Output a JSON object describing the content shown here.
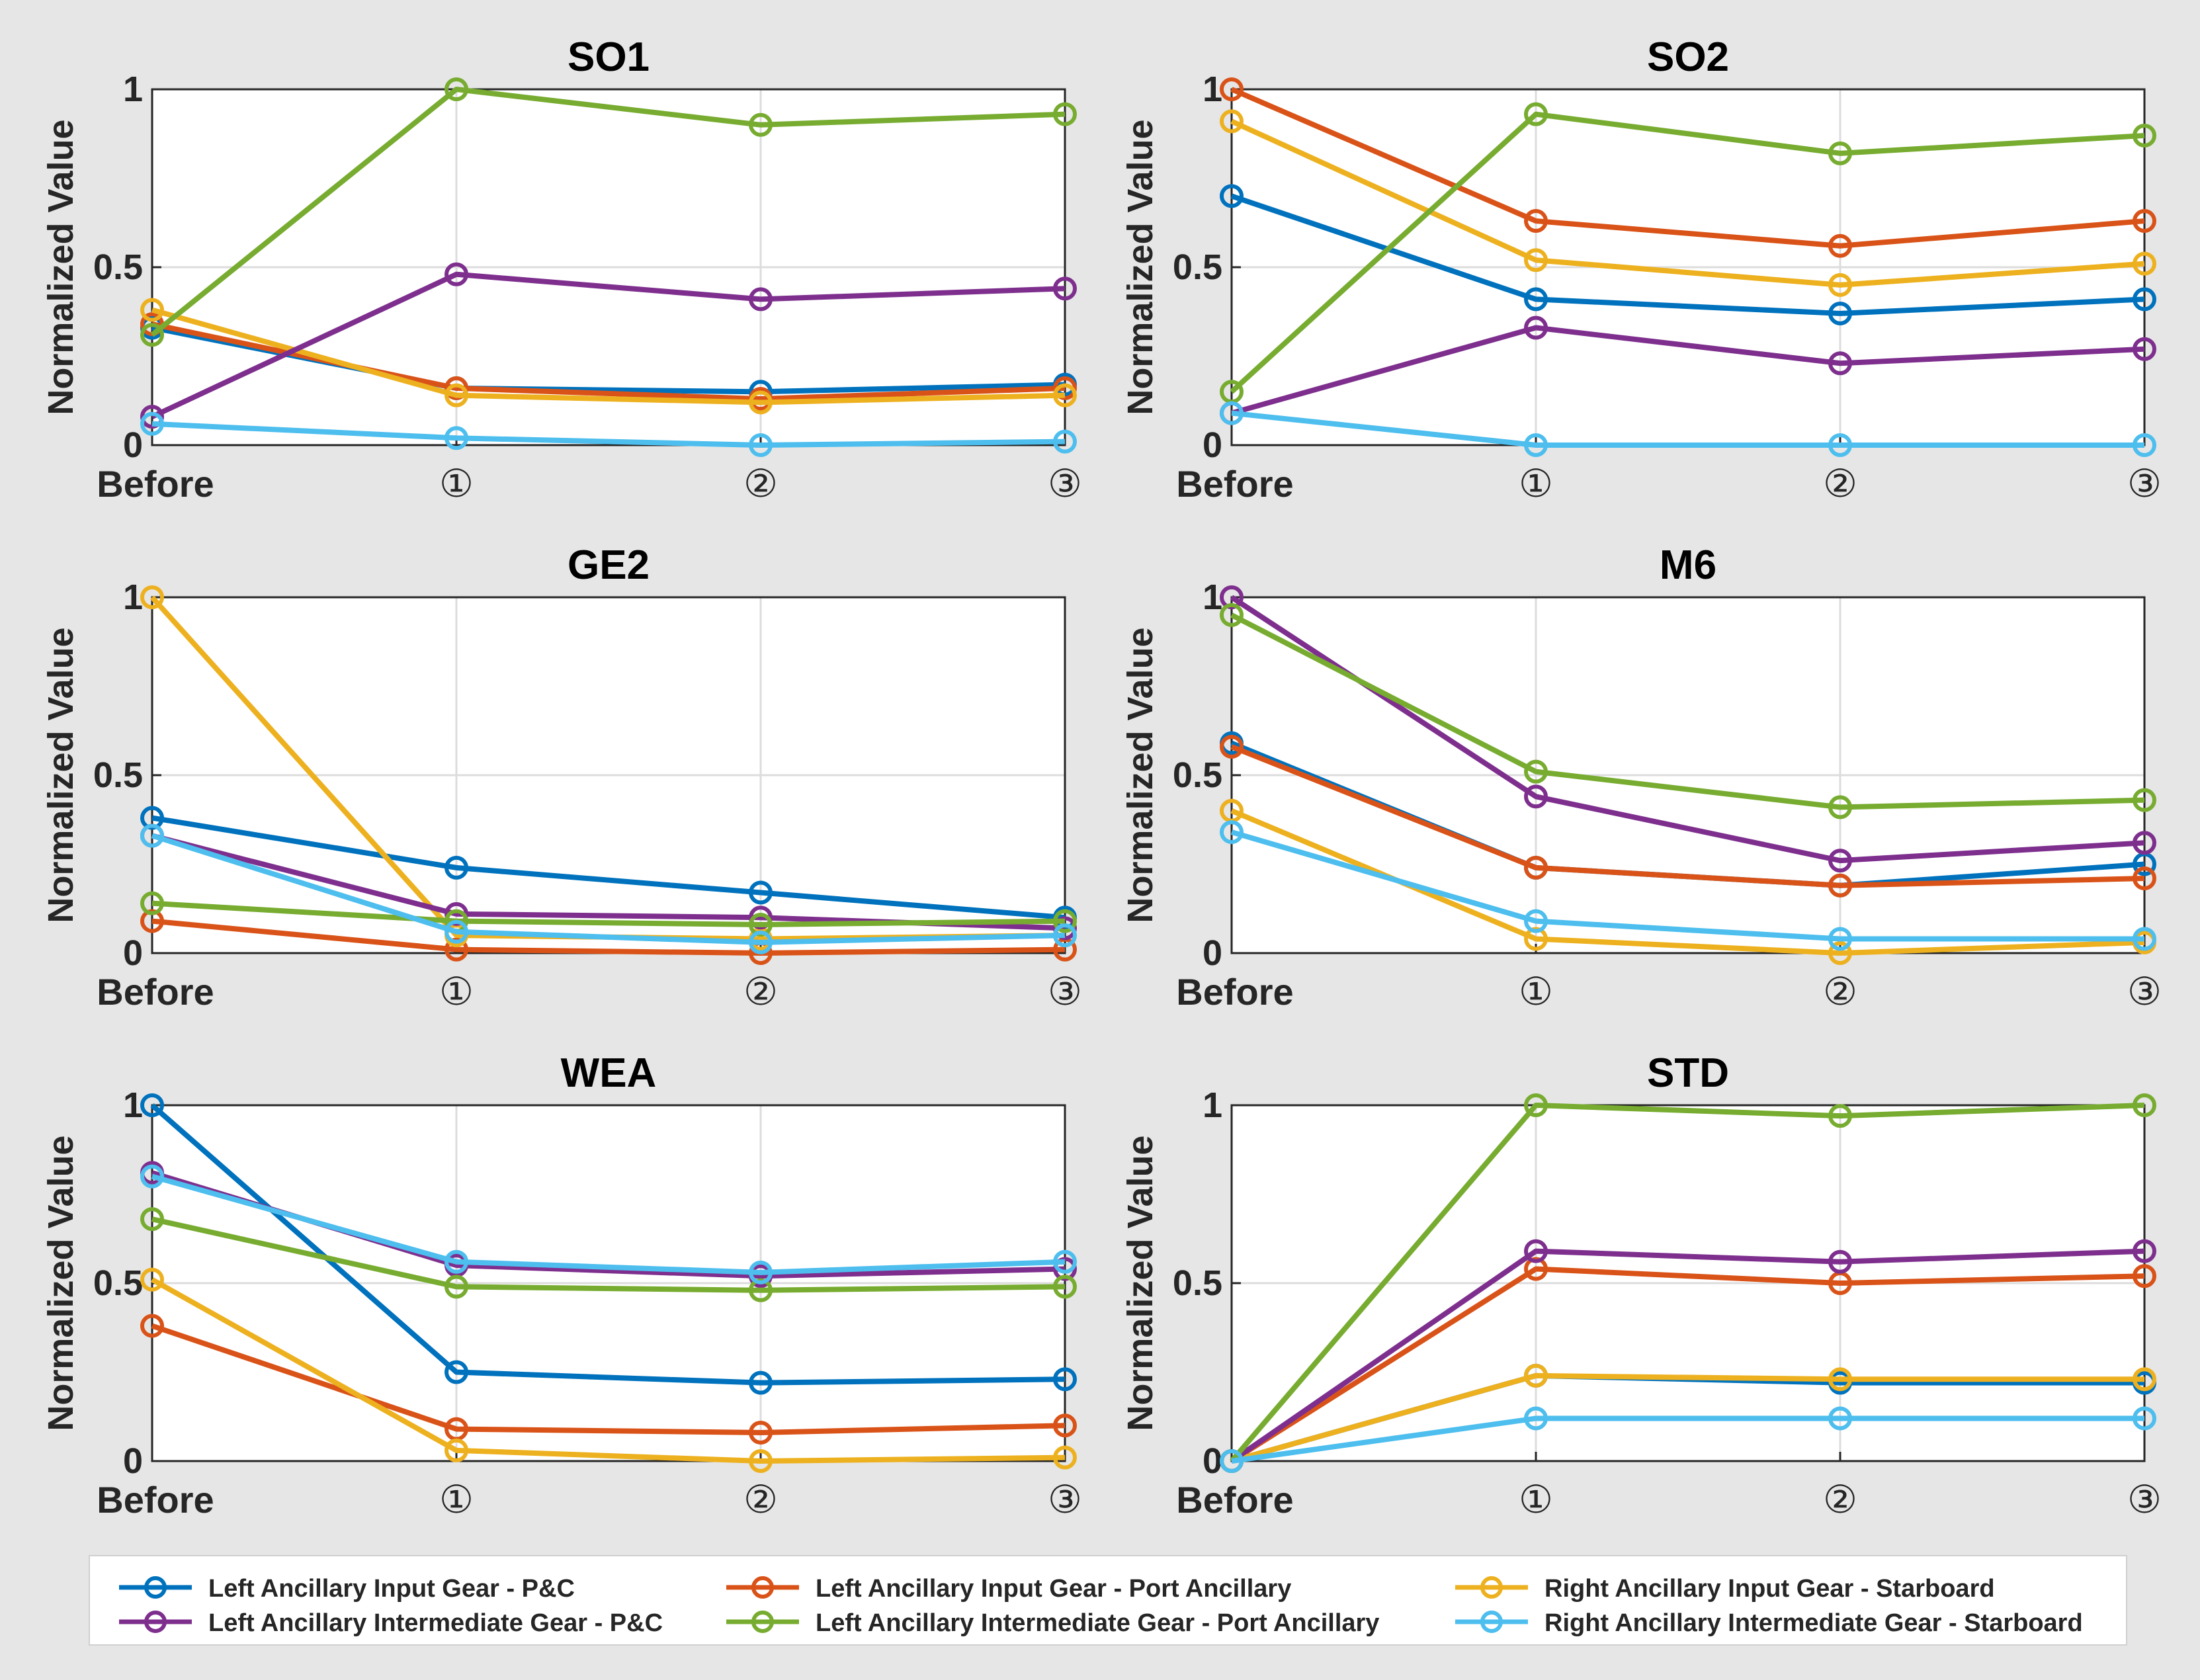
{
  "figure": {
    "ylabel": "Normalized Value",
    "categories": [
      "Before",
      "①",
      "②",
      "③"
    ],
    "ylim": [
      0,
      1
    ],
    "yticks": [
      0,
      0.5,
      1
    ],
    "ytick_labels": [
      "0",
      "0.5",
      "1"
    ]
  },
  "series_meta": [
    {
      "key": "lig_pc",
      "name": "Left Ancillary Input Gear - P&C",
      "color": "#0072BD"
    },
    {
      "key": "lig_port",
      "name": "Left Ancillary Input Gear - Port Ancillary",
      "color": "#D95319"
    },
    {
      "key": "rig_star",
      "name": "Right Ancillary Input Gear - Starboard",
      "color": "#EDB120"
    },
    {
      "key": "lii_pc",
      "name": "Left Ancillary Intermediate Gear - P&C",
      "color": "#7E2F8E"
    },
    {
      "key": "lii_port",
      "name": "Left Ancillary Intermediate Gear - Port Ancillary",
      "color": "#77AC30"
    },
    {
      "key": "rii_star",
      "name": "Right Ancillary Intermediate Gear - Starboard",
      "color": "#4DBEEE"
    }
  ],
  "chart_data": [
    {
      "type": "line",
      "title": "SO1",
      "categories": [
        "Before",
        "①",
        "②",
        "③"
      ],
      "ylabel": "Normalized Value",
      "ylim": [
        0,
        1
      ],
      "series": [
        {
          "name": "Left Ancillary Input Gear - P&C",
          "values": [
            0.33,
            0.16,
            0.15,
            0.17
          ]
        },
        {
          "name": "Left Ancillary Input Gear - Port Ancillary",
          "values": [
            0.34,
            0.16,
            0.13,
            0.16
          ]
        },
        {
          "name": "Right Ancillary Input Gear - Starboard",
          "values": [
            0.38,
            0.14,
            0.12,
            0.14
          ]
        },
        {
          "name": "Left Ancillary Intermediate Gear - P&C",
          "values": [
            0.08,
            0.48,
            0.41,
            0.44
          ]
        },
        {
          "name": "Left Ancillary Intermediate Gear - Port Ancillary",
          "values": [
            0.31,
            1.0,
            0.9,
            0.93
          ]
        },
        {
          "name": "Right Ancillary Intermediate Gear - Starboard",
          "values": [
            0.06,
            0.02,
            0.0,
            0.01
          ]
        }
      ]
    },
    {
      "type": "line",
      "title": "SO2",
      "categories": [
        "Before",
        "①",
        "②",
        "③"
      ],
      "ylabel": "Normalized Value",
      "ylim": [
        0,
        1
      ],
      "series": [
        {
          "name": "Left Ancillary Input Gear - P&C",
          "values": [
            0.7,
            0.41,
            0.37,
            0.41
          ]
        },
        {
          "name": "Left Ancillary Input Gear - Port Ancillary",
          "values": [
            1.0,
            0.63,
            0.56,
            0.63
          ]
        },
        {
          "name": "Right Ancillary Input Gear - Starboard",
          "values": [
            0.91,
            0.52,
            0.45,
            0.51
          ]
        },
        {
          "name": "Left Ancillary Intermediate Gear - P&C",
          "values": [
            0.09,
            0.33,
            0.23,
            0.27
          ]
        },
        {
          "name": "Left Ancillary Intermediate Gear - Port Ancillary",
          "values": [
            0.15,
            0.93,
            0.82,
            0.87
          ]
        },
        {
          "name": "Right Ancillary Intermediate Gear - Starboard",
          "values": [
            0.09,
            0.0,
            0.0,
            0.0
          ]
        }
      ]
    },
    {
      "type": "line",
      "title": "GE2",
      "categories": [
        "Before",
        "①",
        "②",
        "③"
      ],
      "ylabel": "Normalized Value",
      "ylim": [
        0,
        1
      ],
      "series": [
        {
          "name": "Left Ancillary Input Gear - P&C",
          "values": [
            0.38,
            0.24,
            0.17,
            0.1
          ]
        },
        {
          "name": "Left Ancillary Input Gear - Port Ancillary",
          "values": [
            0.09,
            0.01,
            0.0,
            0.01
          ]
        },
        {
          "name": "Right Ancillary Input Gear - Starboard",
          "values": [
            1.0,
            0.05,
            0.04,
            0.05
          ]
        },
        {
          "name": "Left Ancillary Intermediate Gear - P&C",
          "values": [
            0.33,
            0.11,
            0.1,
            0.07
          ]
        },
        {
          "name": "Left Ancillary Intermediate Gear - Port Ancillary",
          "values": [
            0.14,
            0.09,
            0.08,
            0.09
          ]
        },
        {
          "name": "Right Ancillary Intermediate Gear - Starboard",
          "values": [
            0.33,
            0.06,
            0.03,
            0.05
          ]
        }
      ]
    },
    {
      "type": "line",
      "title": "M6",
      "categories": [
        "Before",
        "①",
        "②",
        "③"
      ],
      "ylabel": "Normalized Value",
      "ylim": [
        0,
        1
      ],
      "series": [
        {
          "name": "Left Ancillary Input Gear - P&C",
          "values": [
            0.59,
            0.24,
            0.19,
            0.25
          ]
        },
        {
          "name": "Left Ancillary Input Gear - Port Ancillary",
          "values": [
            0.58,
            0.24,
            0.19,
            0.21
          ]
        },
        {
          "name": "Right Ancillary Input Gear - Starboard",
          "values": [
            0.4,
            0.04,
            0.0,
            0.03
          ]
        },
        {
          "name": "Left Ancillary Intermediate Gear - P&C",
          "values": [
            1.0,
            0.44,
            0.26,
            0.31
          ]
        },
        {
          "name": "Left Ancillary Intermediate Gear - Port Ancillary",
          "values": [
            0.95,
            0.51,
            0.41,
            0.43
          ]
        },
        {
          "name": "Right Ancillary Intermediate Gear - Starboard",
          "values": [
            0.34,
            0.09,
            0.04,
            0.04
          ]
        }
      ]
    },
    {
      "type": "line",
      "title": "WEA",
      "categories": [
        "Before",
        "①",
        "②",
        "③"
      ],
      "ylabel": "Normalized Value",
      "ylim": [
        0,
        1
      ],
      "series": [
        {
          "name": "Left Ancillary Input Gear - P&C",
          "values": [
            1.0,
            0.25,
            0.22,
            0.23
          ]
        },
        {
          "name": "Left Ancillary Input Gear - Port Ancillary",
          "values": [
            0.38,
            0.09,
            0.08,
            0.1
          ]
        },
        {
          "name": "Right Ancillary Input Gear - Starboard",
          "values": [
            0.51,
            0.03,
            0.0,
            0.01
          ]
        },
        {
          "name": "Left Ancillary Intermediate Gear - P&C",
          "values": [
            0.81,
            0.55,
            0.52,
            0.54
          ]
        },
        {
          "name": "Left Ancillary Intermediate Gear - Port Ancillary",
          "values": [
            0.68,
            0.49,
            0.48,
            0.49
          ]
        },
        {
          "name": "Right Ancillary Intermediate Gear - Starboard",
          "values": [
            0.8,
            0.56,
            0.53,
            0.56
          ]
        }
      ]
    },
    {
      "type": "line",
      "title": "STD",
      "categories": [
        "Before",
        "①",
        "②",
        "③"
      ],
      "ylabel": "Normalized Value",
      "ylim": [
        0,
        1
      ],
      "series": [
        {
          "name": "Left Ancillary Input Gear - P&C",
          "values": [
            0.0,
            0.24,
            0.22,
            0.22
          ]
        },
        {
          "name": "Left Ancillary Input Gear - Port Ancillary",
          "values": [
            0.0,
            0.54,
            0.5,
            0.52
          ]
        },
        {
          "name": "Right Ancillary Input Gear - Starboard",
          "values": [
            0.0,
            0.24,
            0.23,
            0.23
          ]
        },
        {
          "name": "Left Ancillary Intermediate Gear - P&C",
          "values": [
            0.0,
            0.59,
            0.56,
            0.59
          ]
        },
        {
          "name": "Left Ancillary Intermediate Gear - Port Ancillary",
          "values": [
            0.0,
            1.0,
            0.97,
            1.0
          ]
        },
        {
          "name": "Right Ancillary Intermediate Gear - Starboard",
          "values": [
            0.0,
            0.12,
            0.12,
            0.12
          ]
        }
      ]
    }
  ],
  "legend": {
    "position": "bottom",
    "entries": [
      "Left Ancillary Input Gear - P&C",
      "Left Ancillary Input Gear - Port Ancillary",
      "Right Ancillary Input Gear - Starboard",
      "Left Ancillary Intermediate Gear - P&C",
      "Left Ancillary Intermediate Gear - Port Ancillary",
      "Right Ancillary Intermediate Gear - Starboard"
    ]
  }
}
